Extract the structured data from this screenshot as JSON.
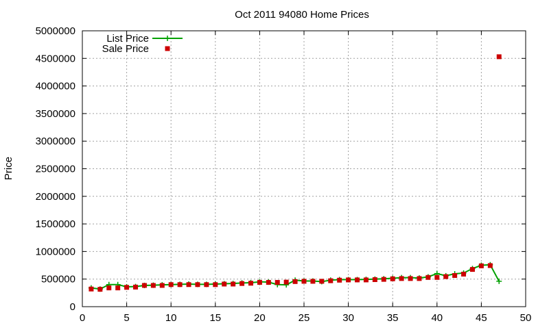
{
  "chart_data": {
    "type": "scatter",
    "title": "Oct 2011 94080 Home Prices",
    "xlabel": "",
    "ylabel": "Price",
    "xlim": [
      0,
      50
    ],
    "ylim": [
      0,
      5000000
    ],
    "xticks": [
      0,
      5,
      10,
      15,
      20,
      25,
      30,
      35,
      40,
      45,
      50
    ],
    "xtick_labels": [
      "0",
      "5",
      "10",
      "15",
      "20",
      "25",
      "30",
      "35",
      "40",
      "45",
      "50"
    ],
    "yticks": [
      0,
      500000,
      1000000,
      1500000,
      2000000,
      2500000,
      3000000,
      3500000,
      4000000,
      4500000,
      5000000
    ],
    "ytick_labels": [
      "0",
      "500000",
      "1000000",
      "1500000",
      "2000000",
      "2500000",
      "3000000",
      "3500000",
      "4000000",
      "4500000",
      "5000000"
    ],
    "grid": true,
    "legend_position": "top-left",
    "series": [
      {
        "name": "List Price",
        "style": "line-with-plus-markers",
        "color": "#00a000",
        "x": [
          1,
          2,
          3,
          4,
          5,
          6,
          7,
          8,
          9,
          10,
          11,
          12,
          13,
          14,
          15,
          16,
          17,
          18,
          19,
          20,
          21,
          22,
          23,
          24,
          25,
          26,
          27,
          28,
          29,
          30,
          31,
          32,
          33,
          34,
          35,
          36,
          37,
          38,
          39,
          40,
          41,
          42,
          43,
          44,
          45,
          46,
          47
        ],
        "y": [
          340000,
          320000,
          400000,
          400000,
          360000,
          365000,
          385000,
          390000,
          395000,
          400000,
          405000,
          410000,
          405000,
          405000,
          410000,
          415000,
          420000,
          430000,
          435000,
          450000,
          445000,
          400000,
          395000,
          480000,
          465000,
          465000,
          455000,
          480000,
          490000,
          490000,
          490000,
          495000,
          500000,
          505000,
          515000,
          525000,
          525000,
          520000,
          540000,
          600000,
          560000,
          595000,
          610000,
          690000,
          750000,
          760000,
          460000
        ]
      },
      {
        "name": "Sale Price",
        "style": "square-markers",
        "color": "#cc0000",
        "x": [
          1,
          2,
          3,
          4,
          5,
          6,
          7,
          8,
          9,
          10,
          11,
          12,
          13,
          14,
          15,
          16,
          17,
          18,
          19,
          20,
          21,
          22,
          23,
          24,
          25,
          26,
          27,
          28,
          29,
          30,
          31,
          32,
          33,
          34,
          35,
          36,
          37,
          38,
          39,
          40,
          41,
          42,
          43,
          44,
          45,
          46,
          47
        ],
        "y": [
          320000,
          315000,
          340000,
          340000,
          350000,
          355000,
          385000,
          385000,
          385000,
          400000,
          400000,
          400000,
          400000,
          400000,
          400000,
          410000,
          410000,
          420000,
          425000,
          440000,
          440000,
          440000,
          445000,
          455000,
          460000,
          460000,
          460000,
          470000,
          480000,
          485000,
          485000,
          485000,
          490000,
          495000,
          505000,
          510000,
          510000,
          510000,
          530000,
          530000,
          545000,
          565000,
          590000,
          675000,
          740000,
          745000,
          4530000
        ]
      }
    ]
  }
}
